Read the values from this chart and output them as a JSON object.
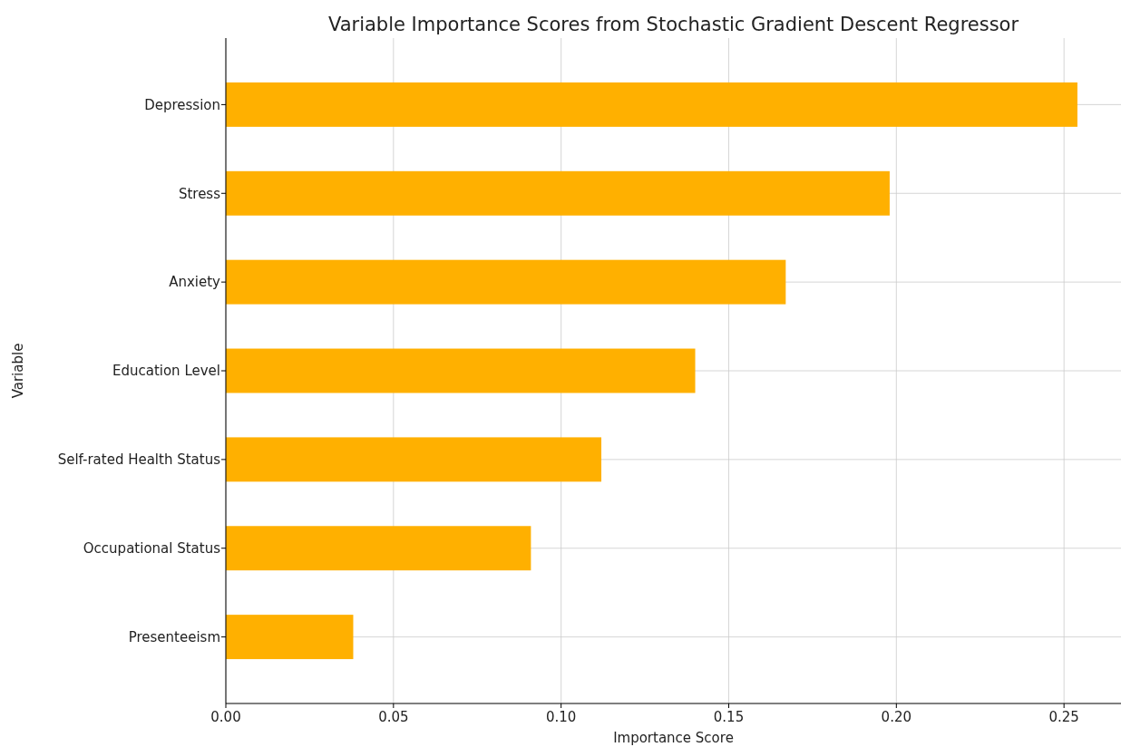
{
  "chart_data": {
    "type": "bar",
    "orientation": "horizontal",
    "title": "Variable Importance Scores from Stochastic Gradient Descent Regressor",
    "xlabel": "Importance Score",
    "ylabel": "Variable",
    "categories": [
      "Depression",
      "Stress",
      "Anxiety",
      "Education Level",
      "Self-rated Health Status",
      "Occupational Status",
      "Presenteeism"
    ],
    "values": [
      0.254,
      0.198,
      0.167,
      0.14,
      0.112,
      0.091,
      0.038
    ],
    "color": "#ffb000",
    "xlim": [
      0,
      0.267
    ],
    "xticks": [
      {
        "value": 0,
        "label": "0.00"
      },
      0.05,
      {
        "value": 0.1,
        "label": "0.10"
      },
      0.15,
      {
        "value": 0.2,
        "label": "0.20"
      },
      0.25
    ],
    "grid": true
  }
}
